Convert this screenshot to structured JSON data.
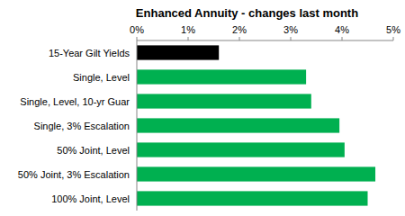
{
  "chart_data": {
    "type": "bar",
    "orientation": "horizontal",
    "title": "Enhanced Annuity - changes last month",
    "categories": [
      "15-Year Gilt Yields",
      "Single, Level",
      "Single, Level, 10-yr Guar",
      "Single, 3% Escalation",
      "50% Joint, Level",
      "50% Joint, 3% Escalation",
      "100% Joint, Level"
    ],
    "values": [
      1.6,
      3.3,
      3.4,
      3.95,
      4.05,
      4.65,
      4.5
    ],
    "colors": [
      "#000000",
      "#00b050",
      "#00b050",
      "#00b050",
      "#00b050",
      "#00b050",
      "#00b050"
    ],
    "xlim": [
      0,
      5
    ],
    "xticks": [
      {
        "value": 0,
        "label": "0%"
      },
      {
        "value": 1,
        "label": "1%"
      },
      {
        "value": 2,
        "label": "2%"
      },
      {
        "value": 3,
        "label": "3%"
      },
      {
        "value": 4,
        "label": "4%"
      },
      {
        "value": 5,
        "label": "5%"
      }
    ],
    "grid": false
  }
}
